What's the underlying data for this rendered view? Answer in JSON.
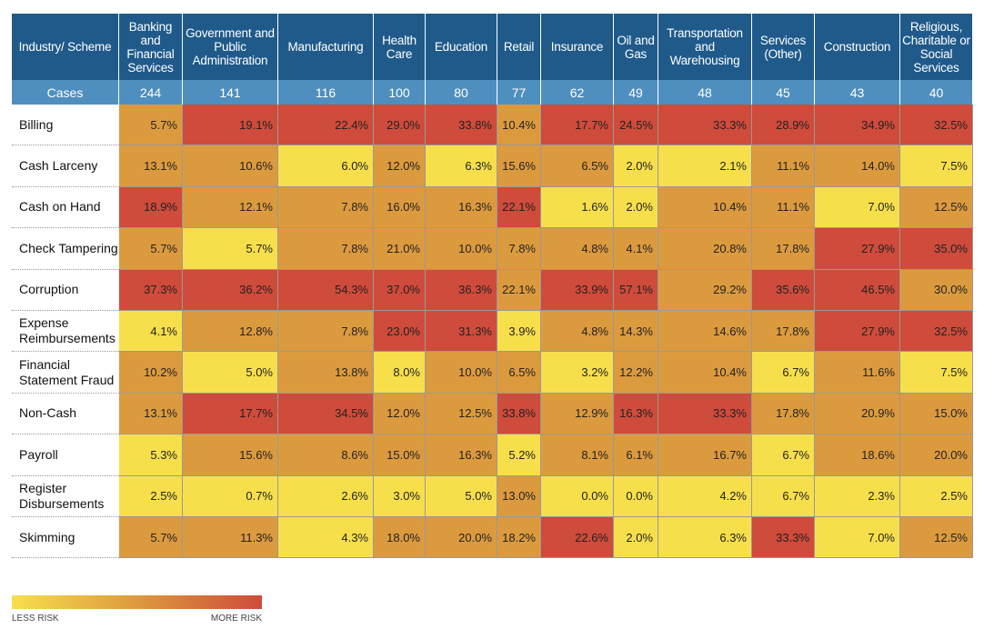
{
  "table": {
    "corner": "Industry/ Scheme",
    "cases_label": "Cases",
    "columns": [
      {
        "name": "Banking and Financial Services",
        "cases": "244"
      },
      {
        "name": "Government and Public Administration",
        "cases": "141"
      },
      {
        "name": "Manufacturing",
        "cases": "116"
      },
      {
        "name": "Health Care",
        "cases": "100"
      },
      {
        "name": "Education",
        "cases": "80"
      },
      {
        "name": "Retail",
        "cases": "77"
      },
      {
        "name": "Insurance",
        "cases": "62"
      },
      {
        "name": "Oil and Gas",
        "cases": "49"
      },
      {
        "name": "Transportation and Warehousing",
        "cases": "48"
      },
      {
        "name": "Services (Other)",
        "cases": "45"
      },
      {
        "name": "Construction",
        "cases": "43"
      },
      {
        "name": "Religious, Charitable or Social Services",
        "cases": "40"
      }
    ],
    "rows": [
      {
        "label": "Billing",
        "values": [
          "5.7%",
          "19.1%",
          "22.4%",
          "29.0%",
          "33.8%",
          "10.4%",
          "17.7%",
          "24.5%",
          "33.3%",
          "28.9%",
          "34.9%",
          "32.5%"
        ],
        "colors": [
          "#dc9a3e",
          "#cf4b3b",
          "#cf4b3b",
          "#cf4b3b",
          "#cf4b3b",
          "#dc9a3e",
          "#cf4b3b",
          "#cf4b3b",
          "#cf4b3b",
          "#cf4b3b",
          "#cf4b3b",
          "#cf4b3b"
        ]
      },
      {
        "label": "Cash Larceny",
        "values": [
          "13.1%",
          "10.6%",
          "6.0%",
          "12.0%",
          "6.3%",
          "15.6%",
          "6.5%",
          "2.0%",
          "2.1%",
          "11.1%",
          "14.0%",
          "7.5%"
        ],
        "colors": [
          "#dc9a3e",
          "#dc9a3e",
          "#f7df4c",
          "#dc9a3e",
          "#f7df4c",
          "#dc9a3e",
          "#dc9a3e",
          "#f7df4c",
          "#f7df4c",
          "#dc9a3e",
          "#dc9a3e",
          "#f7df4c"
        ]
      },
      {
        "label": "Cash on Hand",
        "values": [
          "18.9%",
          "12.1%",
          "7.8%",
          "16.0%",
          "16.3%",
          "22.1%",
          "1.6%",
          "2.0%",
          "10.4%",
          "11.1%",
          "7.0%",
          "12.5%"
        ],
        "colors": [
          "#cf4b3b",
          "#dc9a3e",
          "#dc9a3e",
          "#dc9a3e",
          "#dc9a3e",
          "#cf4b3b",
          "#f7df4c",
          "#f7df4c",
          "#dc9a3e",
          "#dc9a3e",
          "#f7df4c",
          "#dc9a3e"
        ]
      },
      {
        "label": "Check Tampering",
        "values": [
          "5.7%",
          "5.7%",
          "7.8%",
          "21.0%",
          "10.0%",
          "7.8%",
          "4.8%",
          "4.1%",
          "20.8%",
          "17.8%",
          "27.9%",
          "35.0%"
        ],
        "colors": [
          "#dc9a3e",
          "#f7df4c",
          "#dc9a3e",
          "#dc9a3e",
          "#dc9a3e",
          "#dc9a3e",
          "#dc9a3e",
          "#dc9a3e",
          "#dc9a3e",
          "#dc9a3e",
          "#cf4b3b",
          "#cf4b3b"
        ]
      },
      {
        "label": "Corruption",
        "values": [
          "37.3%",
          "36.2%",
          "54.3%",
          "37.0%",
          "36.3%",
          "22.1%",
          "33.9%",
          "57.1%",
          "29.2%",
          "35.6%",
          "46.5%",
          "30.0%"
        ],
        "colors": [
          "#cf4b3b",
          "#cf4b3b",
          "#cf4b3b",
          "#cf4b3b",
          "#cf4b3b",
          "#dc9a3e",
          "#cf4b3b",
          "#cf4b3b",
          "#dc9a3e",
          "#cf4b3b",
          "#cf4b3b",
          "#dc9a3e"
        ]
      },
      {
        "label": "Expense Reimbursements",
        "values": [
          "4.1%",
          "12.8%",
          "7.8%",
          "23.0%",
          "31.3%",
          "3.9%",
          "4.8%",
          "14.3%",
          "14.6%",
          "17.8%",
          "27.9%",
          "32.5%"
        ],
        "colors": [
          "#f7df4c",
          "#dc9a3e",
          "#dc9a3e",
          "#cf4b3b",
          "#cf4b3b",
          "#f7df4c",
          "#dc9a3e",
          "#dc9a3e",
          "#dc9a3e",
          "#dc9a3e",
          "#cf4b3b",
          "#cf4b3b"
        ]
      },
      {
        "label": "Financial Statement Fraud",
        "values": [
          "10.2%",
          "5.0%",
          "13.8%",
          "8.0%",
          "10.0%",
          "6.5%",
          "3.2%",
          "12.2%",
          "10.4%",
          "6.7%",
          "11.6%",
          "7.5%"
        ],
        "colors": [
          "#dc9a3e",
          "#f7df4c",
          "#dc9a3e",
          "#f7df4c",
          "#dc9a3e",
          "#dc9a3e",
          "#f7df4c",
          "#dc9a3e",
          "#dc9a3e",
          "#f7df4c",
          "#dc9a3e",
          "#f7df4c"
        ]
      },
      {
        "label": "Non-Cash",
        "values": [
          "13.1%",
          "17.7%",
          "34.5%",
          "12.0%",
          "12.5%",
          "33.8%",
          "12.9%",
          "16.3%",
          "33.3%",
          "17.8%",
          "20.9%",
          "15.0%"
        ],
        "colors": [
          "#dc9a3e",
          "#cf4b3b",
          "#cf4b3b",
          "#dc9a3e",
          "#dc9a3e",
          "#cf4b3b",
          "#dc9a3e",
          "#cf4b3b",
          "#cf4b3b",
          "#dc9a3e",
          "#dc9a3e",
          "#dc9a3e"
        ]
      },
      {
        "label": "Payroll",
        "values": [
          "5.3%",
          "15.6%",
          "8.6%",
          "15.0%",
          "16.3%",
          "5.2%",
          "8.1%",
          "6.1%",
          "16.7%",
          "6.7%",
          "18.6%",
          "20.0%"
        ],
        "colors": [
          "#f7df4c",
          "#dc9a3e",
          "#dc9a3e",
          "#dc9a3e",
          "#dc9a3e",
          "#f7df4c",
          "#dc9a3e",
          "#dc9a3e",
          "#dc9a3e",
          "#f7df4c",
          "#dc9a3e",
          "#dc9a3e"
        ]
      },
      {
        "label": "Register Disbursements",
        "values": [
          "2.5%",
          "0.7%",
          "2.6%",
          "3.0%",
          "5.0%",
          "13.0%",
          "0.0%",
          "0.0%",
          "4.2%",
          "6.7%",
          "2.3%",
          "2.5%"
        ],
        "colors": [
          "#f7df4c",
          "#f7df4c",
          "#f7df4c",
          "#f7df4c",
          "#f7df4c",
          "#dc9a3e",
          "#f7df4c",
          "#f7df4c",
          "#f7df4c",
          "#f7df4c",
          "#f7df4c",
          "#f7df4c"
        ]
      },
      {
        "label": "Skimming",
        "values": [
          "5.7%",
          "11.3%",
          "4.3%",
          "18.0%",
          "20.0%",
          "18.2%",
          "22.6%",
          "2.0%",
          "6.3%",
          "33.3%",
          "7.0%",
          "12.5%"
        ],
        "colors": [
          "#dc9a3e",
          "#dc9a3e",
          "#f7df4c",
          "#dc9a3e",
          "#dc9a3e",
          "#dc9a3e",
          "#cf4b3b",
          "#f7df4c",
          "#f7df4c",
          "#cf4b3b",
          "#f7df4c",
          "#dc9a3e"
        ]
      }
    ]
  },
  "legend": {
    "less": "LESS RISK",
    "more": "MORE RISK",
    "colors": [
      "#f7df4c",
      "#dc9a3e",
      "#cf4b3b"
    ]
  }
}
